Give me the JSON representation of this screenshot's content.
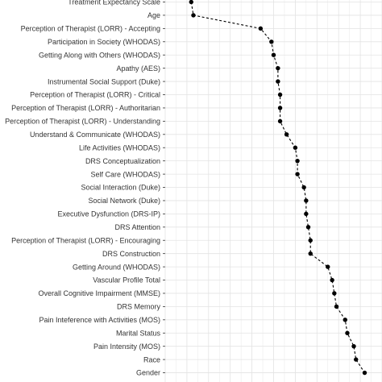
{
  "chart_data": {
    "type": "line",
    "title": "",
    "xlabel": "",
    "ylabel": "",
    "grid": true,
    "line_style": "dashed",
    "series_color": "#000000",
    "grid_color": "#e3e3e3",
    "xlim": [
      0,
      1
    ],
    "x_gridlines": [
      0,
      0.1,
      0.2,
      0.3,
      0.4,
      0.5,
      0.6,
      0.7,
      0.8,
      0.9,
      1.0
    ],
    "categories": [
      "Treatment Expectancy Scale",
      "Age",
      "Perception of Therapist (LORR) - Accepting",
      "Participation in Society (WHODAS)",
      "Getting Along with Others (WHODAS)",
      "Apathy (AES)",
      "Instrumental Social Support (Duke)",
      "Perception of Therapist (LORR) - Critical",
      "Perception of Therapist (LORR) - Authoritarian",
      "Perception of Therapist (LORR) -  Understanding",
      "Understand & Communicate (WHODAS)",
      "Life Activities (WHODAS)",
      "DRS Conceptualization",
      "Self Care (WHODAS)",
      "Social Interaction (Duke)",
      "Social Network (Duke)",
      "Executive Dysfunction (DRS-IP)",
      "DRS Attention",
      "Perception of Therapist (LORR) - Encouraging",
      "DRS Construction",
      "Getting Around (WHODAS)",
      "Vascular Profile Total",
      "Overall Cognitive Impairment (MMSE)",
      "DRS Memory",
      "Pain Inteference with Activities (MOS)",
      "Marital Status",
      "Pain Intensity (MOS)",
      "Race",
      "Gender"
    ],
    "values": [
      0.12,
      0.13,
      0.44,
      0.49,
      0.5,
      0.52,
      0.52,
      0.53,
      0.53,
      0.53,
      0.56,
      0.6,
      0.61,
      0.61,
      0.64,
      0.65,
      0.65,
      0.66,
      0.67,
      0.67,
      0.75,
      0.77,
      0.78,
      0.79,
      0.83,
      0.84,
      0.87,
      0.88,
      0.92
    ]
  }
}
